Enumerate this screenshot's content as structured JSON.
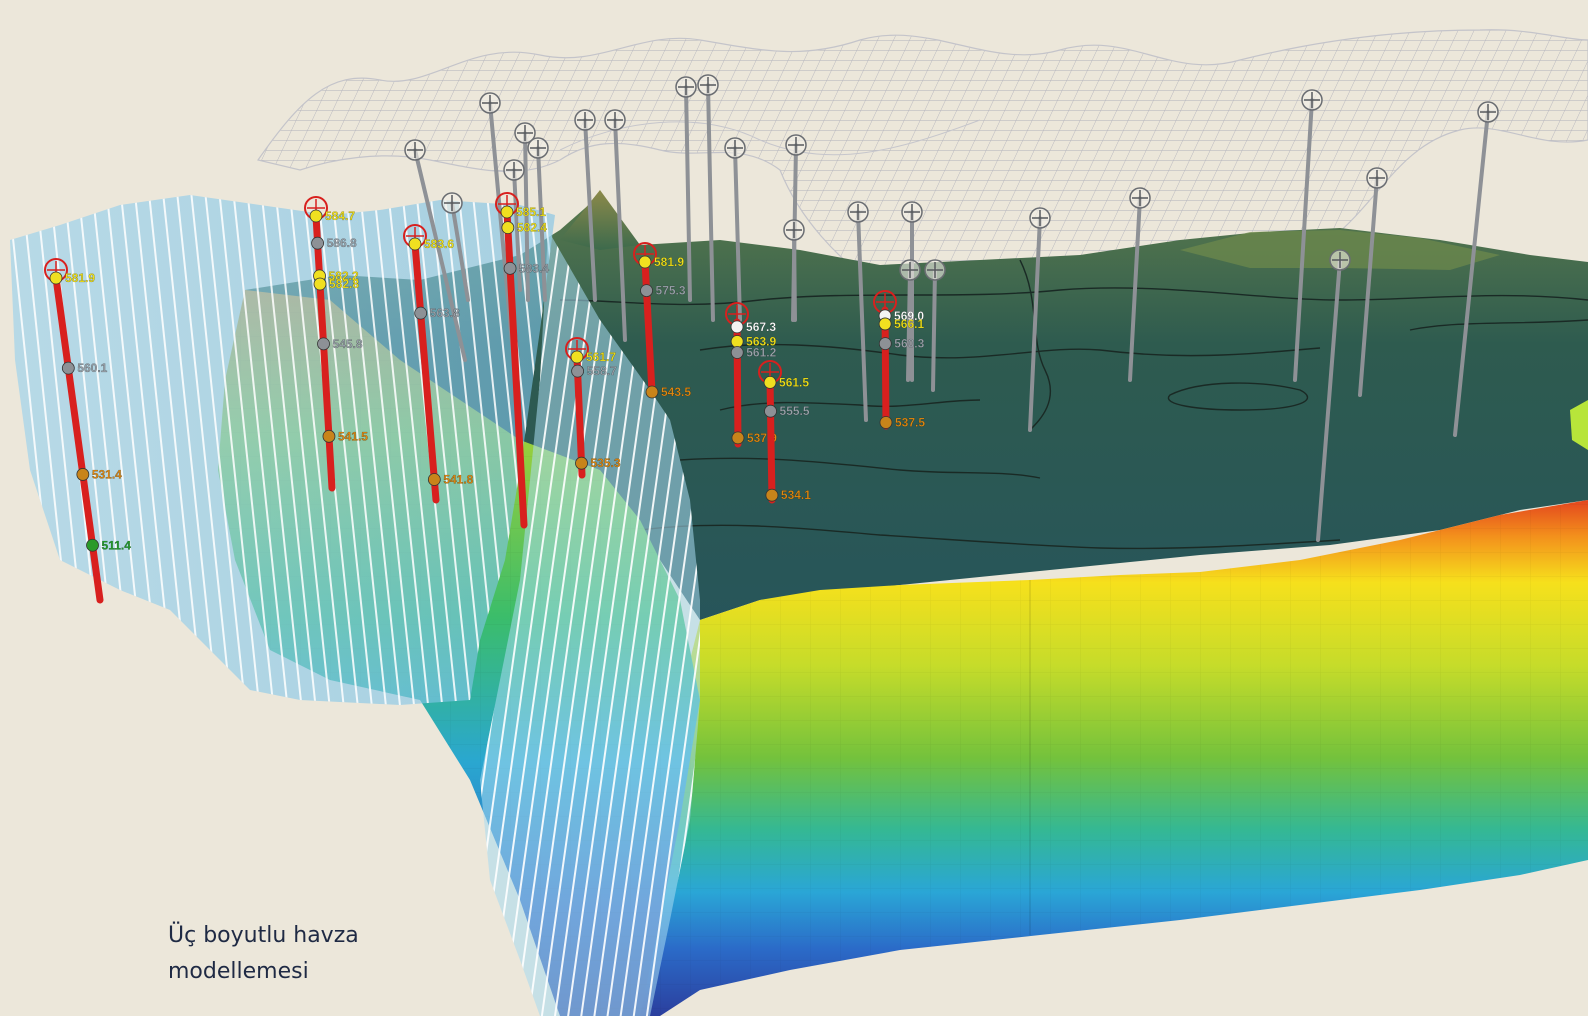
{
  "caption": {
    "line1": "Üç boyutlu havza",
    "line2": "modellemesi"
  },
  "colors": {
    "background": "#ece7da",
    "well_casing": "#d8201e",
    "well_cap_ring": "#d8201e",
    "label_yellow": "#f2e21a",
    "label_white": "#ffffff",
    "label_grey": "#9aa3ab",
    "label_orange": "#e08a12",
    "label_green": "#22a12a",
    "surface_top": "#2f5b55",
    "mesh": "#bcbcc2"
  },
  "wells": [
    {
      "id": "w1",
      "labels": [
        {
          "text": "581.9",
          "tone": "yellow"
        },
        {
          "text": "560.1",
          "tone": "grey"
        },
        {
          "text": "531.4",
          "tone": "orange"
        },
        {
          "text": "511.4",
          "tone": "green"
        }
      ]
    },
    {
      "id": "w2",
      "labels": [
        {
          "text": "584.7",
          "tone": "yellow"
        },
        {
          "text": "586.8",
          "tone": "grey"
        },
        {
          "text": "582.2",
          "tone": "yellow"
        },
        {
          "text": "582.8",
          "tone": "yellow"
        },
        {
          "text": "545.8",
          "tone": "grey"
        },
        {
          "text": "541.5",
          "tone": "orange"
        }
      ]
    },
    {
      "id": "w3",
      "labels": [
        {
          "text": "583.6",
          "tone": "yellow"
        },
        {
          "text": "563.8",
          "tone": "grey"
        },
        {
          "text": "541.8",
          "tone": "orange"
        }
      ]
    },
    {
      "id": "w4",
      "labels": [
        {
          "text": "585.1",
          "tone": "yellow"
        },
        {
          "text": "582.4",
          "tone": "yellow"
        },
        {
          "text": "583.4",
          "tone": "grey"
        }
      ]
    },
    {
      "id": "w5",
      "labels": [
        {
          "text": "581.9",
          "tone": "yellow"
        },
        {
          "text": "575.3",
          "tone": "grey"
        },
        {
          "text": "543.5",
          "tone": "orange"
        }
      ]
    },
    {
      "id": "w6",
      "labels": [
        {
          "text": "561.7",
          "tone": "yellow"
        },
        {
          "text": "558.7",
          "tone": "grey"
        },
        {
          "text": "535.3",
          "tone": "orange"
        }
      ]
    },
    {
      "id": "w7",
      "labels": [
        {
          "text": "567.3",
          "tone": "white"
        },
        {
          "text": "563.9",
          "tone": "yellow"
        },
        {
          "text": "561.2",
          "tone": "grey"
        },
        {
          "text": "537.9",
          "tone": "orange"
        }
      ]
    },
    {
      "id": "w8",
      "labels": [
        {
          "text": "561.5",
          "tone": "yellow"
        },
        {
          "text": "555.5",
          "tone": "grey"
        },
        {
          "text": "534.1",
          "tone": "orange"
        }
      ]
    },
    {
      "id": "w9",
      "labels": [
        {
          "text": "569.0",
          "tone": "white"
        },
        {
          "text": "566.1",
          "tone": "yellow"
        },
        {
          "text": "560.3",
          "tone": "grey"
        },
        {
          "text": "537.5",
          "tone": "orange"
        }
      ]
    }
  ]
}
